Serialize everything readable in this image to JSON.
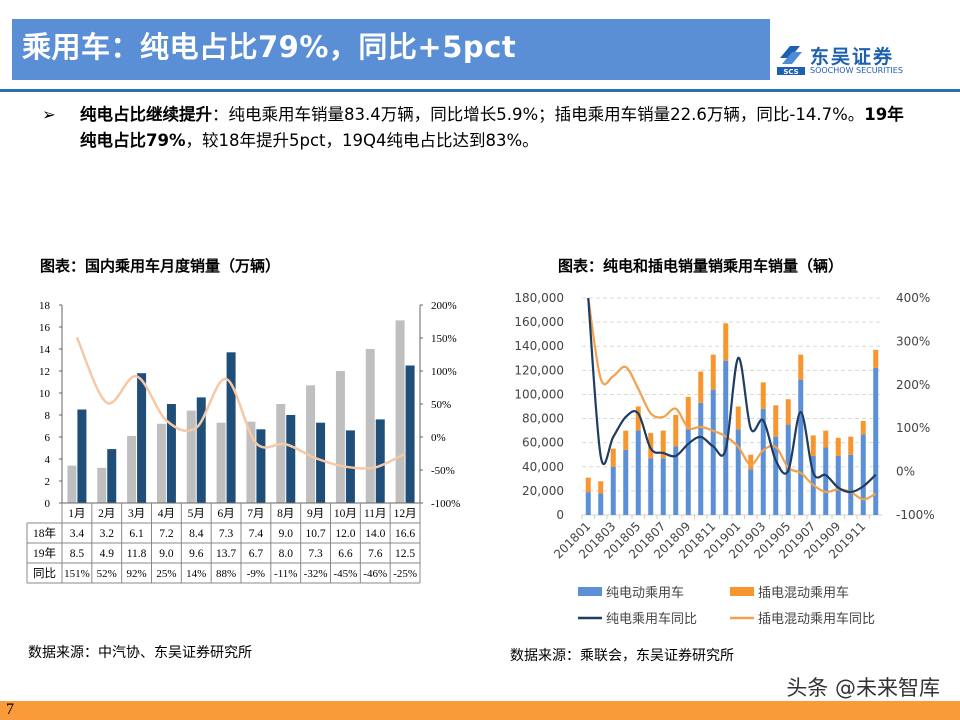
{
  "header": {
    "title": "乘用车：纯电占比79%，同比+5pct",
    "logo_cn": "东吴证券",
    "logo_en": "SOOCHOW SECURITIES",
    "logo_mark": "SCS"
  },
  "bullet": {
    "icon": "arrow-bullet-icon",
    "bold1": "纯电占比继续提升",
    "text1": "：纯电乘用车销量83.4万辆，同比增长5.9%；插电乘用车销量22.6万辆，同比-14.7%。",
    "bold2": "19年纯电占比79%",
    "text2": "，较18年提升5pct，19Q4纯电占比达到83%。"
  },
  "left_chart": {
    "title": "图表：国内乘用车月度销量（万辆）",
    "source": "数据来源：中汽协、东吴证券研究所"
  },
  "right_chart": {
    "title": "图表：纯电和插电销量销乘用车销量（辆）",
    "source": "数据来源：乘联会，东吴证券研究所"
  },
  "watermark": "头条 @未来智库",
  "page_number": "7",
  "colors": {
    "brand_blue": "#5a8fd6",
    "footer_orange": "#f99b38"
  },
  "chart_data": [
    {
      "type": "bar",
      "categories": [
        "1月",
        "2月",
        "3月",
        "4月",
        "5月",
        "6月",
        "7月",
        "8月",
        "9月",
        "10月",
        "11月",
        "12月"
      ],
      "series": [
        {
          "name": "18年",
          "kind": "bar",
          "axis": "left",
          "color": "#bfbfbf",
          "values": [
            3.4,
            3.2,
            6.1,
            7.2,
            8.4,
            7.3,
            7.4,
            9.0,
            10.7,
            12.0,
            14.0,
            16.6
          ]
        },
        {
          "name": "19年",
          "kind": "bar",
          "axis": "left",
          "color": "#1f4e79",
          "values": [
            8.5,
            4.9,
            11.8,
            9.0,
            9.6,
            13.7,
            6.7,
            8.0,
            7.3,
            6.6,
            7.6,
            12.5
          ]
        },
        {
          "name": "同比",
          "kind": "line",
          "axis": "right",
          "color": "#f6c8a6",
          "values": [
            151,
            52,
            92,
            25,
            14,
            88,
            -9,
            -11,
            -32,
            -45,
            -46,
            -25
          ]
        }
      ],
      "table_labels": {
        "row1": "18年",
        "row2": "19年",
        "row3": "同比"
      },
      "table_yoy": [
        "151%",
        "52%",
        "92%",
        "25%",
        "14%",
        "88%",
        "-9%",
        "-11%",
        "-32%",
        "-45%",
        "-46%",
        "-25%"
      ],
      "ylim": [
        0,
        18
      ],
      "yticks": [
        0,
        2,
        4,
        6,
        8,
        10,
        12,
        14,
        16,
        18
      ],
      "y2lim": [
        -100,
        200
      ],
      "y2ticks": [
        "-100%",
        "-50%",
        "0%",
        "50%",
        "100%",
        "150%",
        "200%"
      ],
      "grid": false
    },
    {
      "type": "bar",
      "stacked": true,
      "categories": [
        "201801",
        "201802",
        "201803",
        "201804",
        "201805",
        "201806",
        "201807",
        "201808",
        "201809",
        "201810",
        "201811",
        "201812",
        "201901",
        "201902",
        "201903",
        "201904",
        "201905",
        "201906",
        "201907",
        "201908",
        "201909",
        "201910",
        "201911",
        "201912"
      ],
      "series": [
        {
          "name": "纯电动乘用车",
          "kind": "bar",
          "axis": "left",
          "color": "#5b8fd6",
          "values": [
            19000,
            18000,
            40000,
            54000,
            70000,
            47000,
            47000,
            57000,
            71000,
            93000,
            104000,
            128000,
            71000,
            38000,
            88000,
            65000,
            75000,
            112000,
            49000,
            56000,
            49000,
            50000,
            67000,
            122000
          ]
        },
        {
          "name": "插电混动乘用车",
          "kind": "bar",
          "axis": "left",
          "color": "#f7962f",
          "values": [
            12000,
            10000,
            15000,
            16000,
            20000,
            21000,
            23000,
            26000,
            27000,
            26000,
            29000,
            31000,
            19000,
            12000,
            22000,
            26000,
            21000,
            21000,
            17000,
            14000,
            15000,
            15000,
            11000,
            15000
          ]
        },
        {
          "name": "纯电乘用车同比",
          "kind": "line",
          "axis": "right",
          "color": "#1f3c61",
          "values": [
            430,
            35,
            80,
            126,
            134,
            53,
            43,
            36,
            64,
            80,
            58,
            51,
            262,
            99,
            118,
            26,
            2,
            137,
            -3,
            -8,
            -37,
            -47,
            -34,
            -7
          ]
        },
        {
          "name": "插电混动乘用车同比",
          "kind": "line",
          "axis": "right",
          "color": "#f3a04d",
          "values": [
            420,
            214,
            220,
            241,
            191,
            134,
            126,
            145,
            101,
            103,
            94,
            81,
            57,
            16,
            49,
            57,
            9,
            -3,
            -31,
            -47,
            -41,
            -47,
            -64,
            -51
          ]
        }
      ],
      "ylim": [
        0,
        180000
      ],
      "yticks": [
        "0",
        "20,000",
        "40,000",
        "60,000",
        "80,000",
        "100,000",
        "120,000",
        "140,000",
        "160,000",
        "180,000"
      ],
      "y2lim": [
        -100,
        400
      ],
      "y2ticks": [
        "-100%",
        "0%",
        "100%",
        "200%",
        "300%",
        "400%"
      ],
      "xtick_labels": [
        "201801",
        "201803",
        "201805",
        "201807",
        "201809",
        "201811",
        "201901",
        "201903",
        "201905",
        "201907",
        "201909",
        "201911"
      ],
      "grid": true,
      "legend": "bottom"
    }
  ]
}
